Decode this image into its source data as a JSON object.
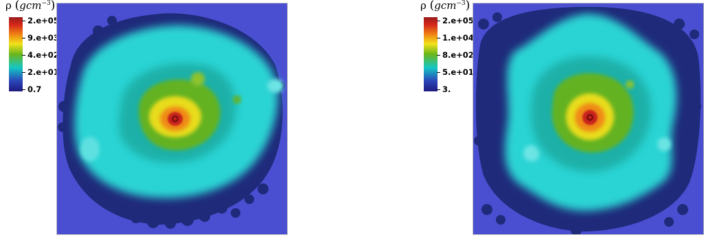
{
  "panels": [
    {
      "colorbar": {
        "quantity": "ρ",
        "unit": "gcm",
        "unit_exponent": "−3",
        "ticks": [
          "2.e+05",
          "9.e+03",
          "4.e+02",
          "2.e+01",
          "0.7"
        ]
      }
    },
    {
      "colorbar": {
        "quantity": "ρ",
        "unit": "gcm",
        "unit_exponent": "−3",
        "ticks": [
          "2.e+05",
          "1.e+04",
          "8.e+02",
          "5.e+01",
          "3."
        ]
      }
    }
  ],
  "colors": {
    "background": "#4a4fd1",
    "dark_blue": "#1f2a7a",
    "cyan": "#2bd4d4",
    "green": "#63b224",
    "yellow": "#e8dc1e",
    "orange": "#ef8a14",
    "red": "#c8201a",
    "dark_red": "#7a1010"
  }
}
